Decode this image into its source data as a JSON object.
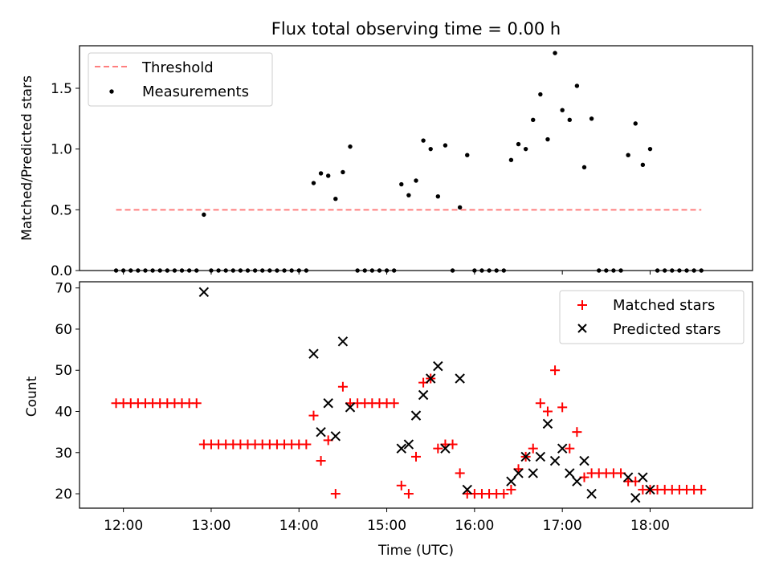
{
  "chart_data": [
    {
      "type": "scatter",
      "title": "Flux total observing time = 0.00 h",
      "xlabel": "",
      "ylabel": "Matched/Predicted stars",
      "ylim": [
        0,
        1.85
      ],
      "yticks": [
        0.0,
        0.5,
        1.0,
        1.5
      ],
      "ytick_labels": [
        "0.0",
        "0.5",
        "1.0",
        "1.5"
      ],
      "legend_position": "top-left",
      "threshold": {
        "name": "Threshold",
        "value": 0.5,
        "x_range": [
          "11:55",
          "18:35"
        ],
        "color": "#ff7f7f"
      },
      "series": [
        {
          "name": "Measurements",
          "color": "#000000",
          "points": [
            [
              "11:55",
              0
            ],
            [
              "12:00",
              0
            ],
            [
              "12:05",
              0
            ],
            [
              "12:10",
              0
            ],
            [
              "12:15",
              0
            ],
            [
              "12:20",
              0
            ],
            [
              "12:25",
              0
            ],
            [
              "12:30",
              0
            ],
            [
              "12:35",
              0
            ],
            [
              "12:40",
              0
            ],
            [
              "12:45",
              0
            ],
            [
              "12:50",
              0
            ],
            [
              "12:55",
              0.46
            ],
            [
              "13:00",
              0
            ],
            [
              "13:05",
              0
            ],
            [
              "13:10",
              0
            ],
            [
              "13:15",
              0
            ],
            [
              "13:20",
              0
            ],
            [
              "13:25",
              0
            ],
            [
              "13:30",
              0
            ],
            [
              "13:35",
              0
            ],
            [
              "13:40",
              0
            ],
            [
              "13:45",
              0
            ],
            [
              "13:50",
              0
            ],
            [
              "13:55",
              0
            ],
            [
              "14:00",
              0
            ],
            [
              "14:05",
              0
            ],
            [
              "14:10",
              0.72
            ],
            [
              "14:15",
              0.8
            ],
            [
              "14:20",
              0.78
            ],
            [
              "14:25",
              0.59
            ],
            [
              "14:30",
              0.81
            ],
            [
              "14:35",
              1.02
            ],
            [
              "14:40",
              0
            ],
            [
              "14:45",
              0
            ],
            [
              "14:50",
              0
            ],
            [
              "14:55",
              0
            ],
            [
              "15:00",
              0
            ],
            [
              "15:05",
              0
            ],
            [
              "15:10",
              0.71
            ],
            [
              "15:15",
              0.62
            ],
            [
              "15:20",
              0.74
            ],
            [
              "15:25",
              1.07
            ],
            [
              "15:30",
              1.0
            ],
            [
              "15:35",
              0.61
            ],
            [
              "15:40",
              1.03
            ],
            [
              "15:45",
              0
            ],
            [
              "15:50",
              0.52
            ],
            [
              "15:55",
              0.95
            ],
            [
              "16:00",
              0
            ],
            [
              "16:05",
              0
            ],
            [
              "16:10",
              0
            ],
            [
              "16:15",
              0
            ],
            [
              "16:20",
              0
            ],
            [
              "16:25",
              0.91
            ],
            [
              "16:30",
              1.04
            ],
            [
              "16:35",
              1.0
            ],
            [
              "16:40",
              1.24
            ],
            [
              "16:45",
              1.45
            ],
            [
              "16:50",
              1.08
            ],
            [
              "16:55",
              1.79
            ],
            [
              "17:00",
              1.32
            ],
            [
              "17:05",
              1.24
            ],
            [
              "17:10",
              1.52
            ],
            [
              "17:15",
              0.85
            ],
            [
              "17:20",
              1.25
            ],
            [
              "17:25",
              0
            ],
            [
              "17:30",
              0
            ],
            [
              "17:35",
              0
            ],
            [
              "17:40",
              0
            ],
            [
              "17:45",
              0.95
            ],
            [
              "17:50",
              1.21
            ],
            [
              "17:55",
              0.87
            ],
            [
              "18:00",
              1.0
            ],
            [
              "18:05",
              0
            ],
            [
              "18:10",
              0
            ],
            [
              "18:15",
              0
            ],
            [
              "18:20",
              0
            ],
            [
              "18:25",
              0
            ],
            [
              "18:30",
              0
            ],
            [
              "18:35",
              0
            ]
          ]
        }
      ]
    },
    {
      "type": "scatter",
      "title": "",
      "xlabel": "Time (UTC)",
      "ylabel": "Count",
      "ylim": [
        16.5,
        71.5
      ],
      "yticks": [
        20,
        30,
        40,
        50,
        60,
        70
      ],
      "ytick_labels": [
        "20",
        "30",
        "40",
        "50",
        "60",
        "70"
      ],
      "xlim": [
        "11:30",
        "19:10"
      ],
      "xticks": [
        "12:00",
        "13:00",
        "14:00",
        "15:00",
        "16:00",
        "17:00",
        "18:00"
      ],
      "xtick_labels": [
        "12:00",
        "13:00",
        "14:00",
        "15:00",
        "16:00",
        "17:00",
        "18:00"
      ],
      "legend_position": "top-right",
      "series": [
        {
          "name": "Matched stars",
          "marker": "plus",
          "color": "#ff0000",
          "points": [
            [
              "11:55",
              42
            ],
            [
              "12:00",
              42
            ],
            [
              "12:05",
              42
            ],
            [
              "12:10",
              42
            ],
            [
              "12:15",
              42
            ],
            [
              "12:20",
              42
            ],
            [
              "12:25",
              42
            ],
            [
              "12:30",
              42
            ],
            [
              "12:35",
              42
            ],
            [
              "12:40",
              42
            ],
            [
              "12:45",
              42
            ],
            [
              "12:50",
              42
            ],
            [
              "12:55",
              32
            ],
            [
              "13:00",
              32
            ],
            [
              "13:05",
              32
            ],
            [
              "13:10",
              32
            ],
            [
              "13:15",
              32
            ],
            [
              "13:20",
              32
            ],
            [
              "13:25",
              32
            ],
            [
              "13:30",
              32
            ],
            [
              "13:35",
              32
            ],
            [
              "13:40",
              32
            ],
            [
              "13:45",
              32
            ],
            [
              "13:50",
              32
            ],
            [
              "13:55",
              32
            ],
            [
              "14:00",
              32
            ],
            [
              "14:05",
              32
            ],
            [
              "14:10",
              39
            ],
            [
              "14:15",
              28
            ],
            [
              "14:20",
              33
            ],
            [
              "14:25",
              20
            ],
            [
              "14:30",
              46
            ],
            [
              "14:35",
              42
            ],
            [
              "14:40",
              42
            ],
            [
              "14:45",
              42
            ],
            [
              "14:50",
              42
            ],
            [
              "14:55",
              42
            ],
            [
              "15:00",
              42
            ],
            [
              "15:05",
              42
            ],
            [
              "15:10",
              22
            ],
            [
              "15:15",
              20
            ],
            [
              "15:20",
              29
            ],
            [
              "15:25",
              47
            ],
            [
              "15:30",
              48
            ],
            [
              "15:35",
              31
            ],
            [
              "15:40",
              32
            ],
            [
              "15:45",
              32
            ],
            [
              "15:50",
              25
            ],
            [
              "15:55",
              20
            ],
            [
              "16:00",
              20
            ],
            [
              "16:05",
              20
            ],
            [
              "16:10",
              20
            ],
            [
              "16:15",
              20
            ],
            [
              "16:20",
              20
            ],
            [
              "16:25",
              21
            ],
            [
              "16:30",
              26
            ],
            [
              "16:35",
              29
            ],
            [
              "16:40",
              31
            ],
            [
              "16:45",
              42
            ],
            [
              "16:50",
              40
            ],
            [
              "16:55",
              50
            ],
            [
              "17:00",
              41
            ],
            [
              "17:05",
              31
            ],
            [
              "17:10",
              35
            ],
            [
              "17:15",
              24
            ],
            [
              "17:20",
              25
            ],
            [
              "17:25",
              25
            ],
            [
              "17:30",
              25
            ],
            [
              "17:35",
              25
            ],
            [
              "17:40",
              25
            ],
            [
              "17:45",
              23
            ],
            [
              "17:50",
              23
            ],
            [
              "17:55",
              21
            ],
            [
              "18:00",
              21
            ],
            [
              "18:05",
              21
            ],
            [
              "18:10",
              21
            ],
            [
              "18:15",
              21
            ],
            [
              "18:20",
              21
            ],
            [
              "18:25",
              21
            ],
            [
              "18:30",
              21
            ],
            [
              "18:35",
              21
            ]
          ]
        },
        {
          "name": "Predicted stars",
          "marker": "x",
          "color": "#000000",
          "points": [
            [
              "12:55",
              69
            ],
            [
              "14:10",
              54
            ],
            [
              "14:15",
              35
            ],
            [
              "14:20",
              42
            ],
            [
              "14:25",
              34
            ],
            [
              "14:30",
              57
            ],
            [
              "14:35",
              41
            ],
            [
              "15:10",
              31
            ],
            [
              "15:15",
              32
            ],
            [
              "15:20",
              39
            ],
            [
              "15:25",
              44
            ],
            [
              "15:30",
              48
            ],
            [
              "15:35",
              51
            ],
            [
              "15:40",
              31
            ],
            [
              "15:50",
              48
            ],
            [
              "15:55",
              21
            ],
            [
              "16:25",
              23
            ],
            [
              "16:30",
              25
            ],
            [
              "16:35",
              29
            ],
            [
              "16:40",
              25
            ],
            [
              "16:45",
              29
            ],
            [
              "16:50",
              37
            ],
            [
              "16:55",
              28
            ],
            [
              "17:00",
              31
            ],
            [
              "17:05",
              25
            ],
            [
              "17:10",
              23
            ],
            [
              "17:15",
              28
            ],
            [
              "17:20",
              20
            ],
            [
              "17:45",
              24
            ],
            [
              "17:50",
              19
            ],
            [
              "17:55",
              24
            ],
            [
              "18:00",
              21
            ]
          ]
        }
      ]
    }
  ]
}
